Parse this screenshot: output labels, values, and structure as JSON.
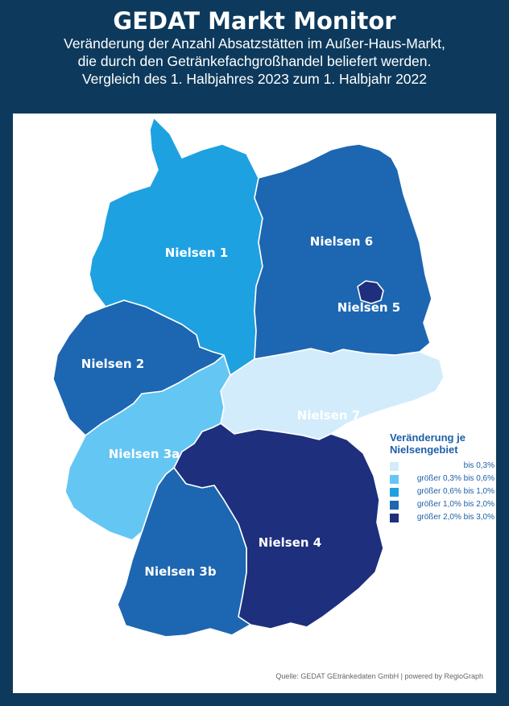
{
  "header": {
    "title": "GEDAT Markt Monitor",
    "subtitle_lines": [
      "Veränderung der Anzahl Absatzstätten im Außer-Haus-Markt,",
      "die durch den Getränkefachgroßhandel beliefert werden.",
      "Vergleich des 1. Halbjahres 2023 zum 1. Halbjahr 2022"
    ]
  },
  "map": {
    "regions": [
      {
        "id": "n1",
        "label": "Nielsen 1",
        "class": "größer 0,6% bis 1,0%",
        "color": "#1ea1e1"
      },
      {
        "id": "n2",
        "label": "Nielsen 2",
        "class": "größer 1,0% bis 2,0%",
        "color": "#1d66b1"
      },
      {
        "id": "n3a",
        "label": "Nielsen 3a",
        "class": "größer 0,3% bis 0,6%",
        "color": "#64c6f2"
      },
      {
        "id": "n3b",
        "label": "Nielsen 3b",
        "class": "größer 1,0% bis 2,0%",
        "color": "#1d66b1"
      },
      {
        "id": "n4",
        "label": "Nielsen 4",
        "class": "größer 2,0% bis 3,0%",
        "color": "#1d2f7d"
      },
      {
        "id": "n5",
        "label": "Nielsen 5",
        "class": "größer 2,0% bis 3,0%",
        "color": "#1d2f7d"
      },
      {
        "id": "n6",
        "label": "Nielsen 6",
        "class": "größer 1,0% bis 2,0%",
        "color": "#1d66b1"
      },
      {
        "id": "n7",
        "label": "Nielsen 7",
        "class": "bis 0,3%",
        "color": "#d2ecfb"
      }
    ]
  },
  "legend": {
    "title_lines": [
      "Veränderung je",
      "Nielsengebiet"
    ],
    "items": [
      {
        "label": "bis 0,3%",
        "color": "#d2ecfb"
      },
      {
        "label": "größer 0,3% bis 0,6%",
        "color": "#64c6f2"
      },
      {
        "label": "größer 0,6% bis 1,0%",
        "color": "#1ea1e1"
      },
      {
        "label": "größer 1,0% bis 2,0%",
        "color": "#1d66b1"
      },
      {
        "label": "größer 2,0% bis 3,0%",
        "color": "#1d2f7d"
      }
    ]
  },
  "source": "Quelle: GEDAT GEtränkedaten GmbH | powered by RegioGraph"
}
